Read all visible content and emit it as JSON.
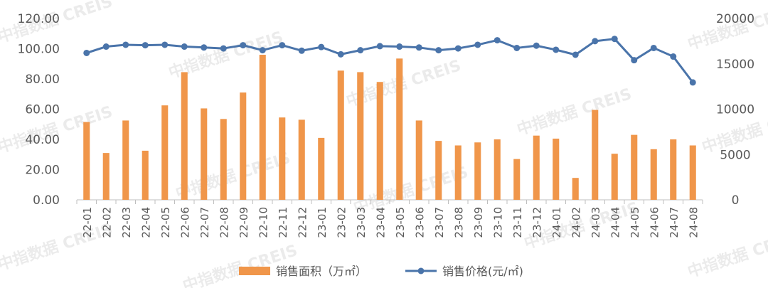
{
  "chart_data": {
    "type": "bar+line",
    "categories": [
      "22-01",
      "22-02",
      "22-03",
      "22-04",
      "22-05",
      "22-06",
      "22-07",
      "22-08",
      "22-09",
      "22-10",
      "22-11",
      "22-12",
      "23-01",
      "23-02",
      "23-03",
      "23-04",
      "23-05",
      "23-06",
      "23-07",
      "23-08",
      "23-09",
      "23-10",
      "23-11",
      "23-12",
      "24-01",
      "24-02",
      "24-03",
      "24-04",
      "24-05",
      "24-06",
      "24-07",
      "24-08"
    ],
    "series": [
      {
        "name": "销售面积（万㎡）",
        "type": "bar",
        "axis": "left",
        "color": "#F0964A",
        "values": [
          51.5,
          31,
          52.5,
          32.5,
          62.5,
          84.5,
          60.5,
          53.5,
          71,
          96,
          54.5,
          53,
          41,
          85.5,
          84.5,
          78,
          93.5,
          52.5,
          39,
          36,
          38,
          40,
          27,
          42.5,
          40.5,
          14.5,
          59.5,
          30.5,
          43,
          33.5,
          40,
          36
        ]
      },
      {
        "name": "销售价格(元/㎡)",
        "type": "line",
        "axis": "right",
        "color": "#4A74AA",
        "values": [
          16200,
          16900,
          17100,
          17050,
          17100,
          16900,
          16800,
          16700,
          17050,
          16500,
          17050,
          16450,
          16850,
          16050,
          16500,
          16950,
          16900,
          16800,
          16500,
          16700,
          17100,
          17600,
          16750,
          17000,
          16550,
          16000,
          17500,
          17750,
          15400,
          16750,
          15800,
          12950
        ]
      }
    ],
    "y_left": {
      "ticks": [
        "0.00",
        "20.00",
        "40.00",
        "60.00",
        "80.00",
        "100.00",
        "120.00"
      ],
      "min": 0,
      "max": 120
    },
    "y_right": {
      "ticks": [
        "0",
        "5000",
        "10000",
        "15000",
        "20000"
      ],
      "min": 0,
      "max": 20000
    },
    "legend": {
      "position": "bottom"
    },
    "grid": false
  },
  "watermark": {
    "text": "中指数据 CREIS"
  }
}
